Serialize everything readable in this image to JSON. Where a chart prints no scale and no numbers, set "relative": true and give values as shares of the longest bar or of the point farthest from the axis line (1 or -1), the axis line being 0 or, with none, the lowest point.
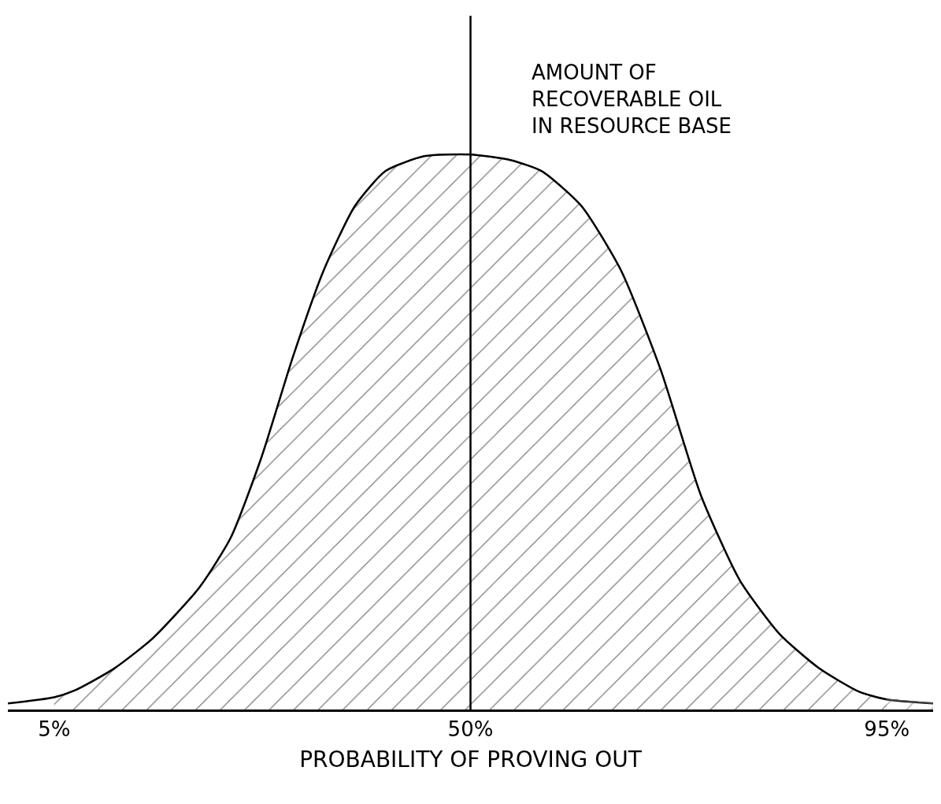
{
  "chart_data": {
    "type": "area",
    "relative": true,
    "xlabel": "PROBABILITY OF PROVING OUT",
    "xlim": [
      0,
      100
    ],
    "xticks": [
      {
        "value": 5,
        "label": "5%"
      },
      {
        "value": 50,
        "label": "50%"
      },
      {
        "value": 95,
        "label": "95%"
      }
    ],
    "marker": "none",
    "line_style": "solid",
    "ref_lines": [
      {
        "axis": "x",
        "value": 50,
        "color": "#000000"
      }
    ],
    "annotations": [
      {
        "text": "AMOUNT OF\nRECOVERABLE OIL\nIN RESOURCE BASE",
        "x": 50,
        "y": 1.1
      }
    ],
    "series": [
      {
        "type": "line",
        "color": "#000000",
        "x": [
          0,
          5,
          7.3,
          11.5,
          15.7,
          20.7,
          24.1,
          27.4,
          30.8,
          34.1,
          37.5,
          40.8,
          45,
          50,
          54.3,
          57.7,
          62,
          66.3,
          70.6,
          74.9,
          79.1,
          83.4,
          87.7,
          92,
          95,
          100
        ],
        "values": [
          0.011,
          0.022,
          0.035,
          0.074,
          0.129,
          0.22,
          0.31,
          0.454,
          0.635,
          0.79,
          0.907,
          0.97,
          0.997,
          1,
          0.99,
          0.97,
          0.907,
          0.79,
          0.61,
          0.386,
          0.233,
          0.136,
          0.074,
          0.032,
          0.018,
          0.011
        ]
      },
      {
        "color": "#000000",
        "x": [
          5,
          7.3,
          11.5,
          15.7,
          20.7,
          24.1,
          27.4,
          30.8,
          34.1,
          37.5,
          40.8,
          45,
          50,
          54.3,
          57.7,
          62,
          66.3,
          70.6,
          74.9,
          79.1,
          83.4,
          87.7,
          92,
          95
        ],
        "values": [
          0.022,
          0.035,
          0.074,
          0.129,
          0.22,
          0.31,
          0.454,
          0.635,
          0.79,
          0.907,
          0.97,
          0.997,
          1,
          0.99,
          0.97,
          0.907,
          0.79,
          0.61,
          0.386,
          0.233,
          0.136,
          0.074,
          0.032,
          0.018
        ]
      },
      {
        "color": "#555555",
        "x": [
          95,
          100
        ],
        "values": [
          0.018,
          0.011
        ]
      }
    ]
  }
}
